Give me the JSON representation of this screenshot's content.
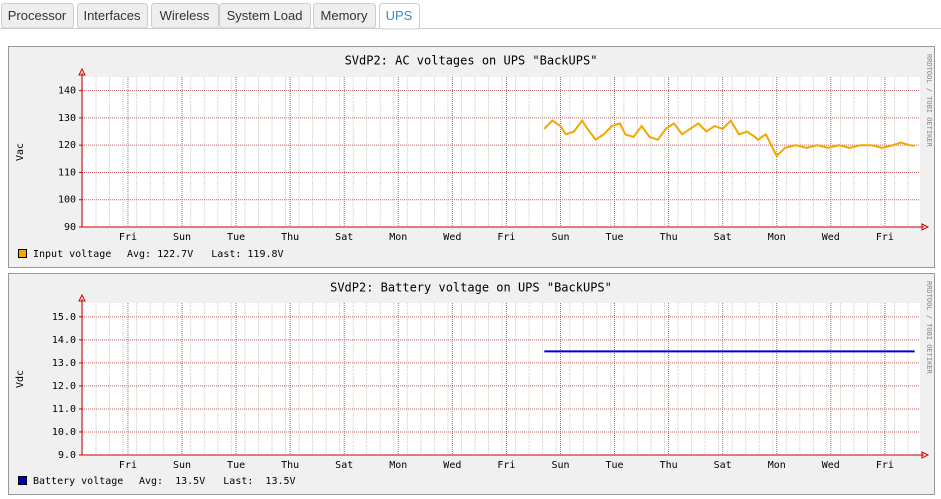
{
  "tabs": [
    "Processor",
    "Interfaces",
    "Wireless",
    "System Load",
    "Memory",
    "UPS"
  ],
  "active_tab": 5,
  "chart_data": [
    {
      "type": "line",
      "title": "SVdP2: AC voltages on UPS \"BackUPS\"",
      "y_label": "Vac",
      "side_text": "RRDTOOL / TOBI OETIKER",
      "xlim": [
        0,
        31
      ],
      "ylim": [
        90,
        145
      ],
      "xticks": [
        {
          "value": 1.7,
          "label": "Fri"
        },
        {
          "value": 3.7,
          "label": "Sun"
        },
        {
          "value": 5.7,
          "label": "Tue"
        },
        {
          "value": 7.7,
          "label": "Thu"
        },
        {
          "value": 9.7,
          "label": "Sat"
        },
        {
          "value": 11.7,
          "label": "Mon"
        },
        {
          "value": 13.7,
          "label": "Wed"
        },
        {
          "value": 15.7,
          "label": "Fri"
        },
        {
          "value": 17.7,
          "label": "Sun"
        },
        {
          "value": 19.7,
          "label": "Tue"
        },
        {
          "value": 21.7,
          "label": "Thu"
        },
        {
          "value": 23.7,
          "label": "Sat"
        },
        {
          "value": 25.7,
          "label": "Mon"
        },
        {
          "value": 27.7,
          "label": "Wed"
        },
        {
          "value": 29.7,
          "label": "Fri"
        }
      ],
      "yticks": [
        90,
        100,
        110,
        120,
        130,
        140
      ],
      "grid": true,
      "legend_stats": "Avg: 122.7V   Last: 119.8V",
      "series": [
        {
          "name": "Input voltage",
          "color": "#f0a800",
          "x": [
            17.1,
            17.4,
            17.7,
            17.9,
            18.2,
            18.5,
            18.7,
            19.0,
            19.3,
            19.6,
            19.9,
            20.1,
            20.4,
            20.7,
            21.0,
            21.3,
            21.6,
            21.9,
            22.2,
            22.5,
            22.8,
            23.1,
            23.4,
            23.7,
            24.0,
            24.3,
            24.6,
            24.9,
            25.0,
            25.3,
            25.5,
            25.7,
            26.0,
            26.4,
            26.8,
            27.2,
            27.6,
            28.0,
            28.4,
            28.8,
            29.2,
            29.6,
            30.0,
            30.3,
            30.6,
            30.8
          ],
          "values": [
            126,
            129,
            127,
            124,
            125,
            129,
            126,
            122,
            124,
            127,
            128,
            124,
            123,
            127,
            123,
            122,
            126,
            128,
            124,
            126,
            128,
            125,
            127,
            126,
            129,
            124,
            125,
            123,
            122,
            124,
            120,
            116,
            119,
            120,
            119,
            120,
            119,
            120,
            119,
            120,
            120,
            119,
            120,
            121,
            120,
            119.8
          ]
        }
      ]
    },
    {
      "type": "line",
      "title": "SVdP2: Battery voltage on UPS \"BackUPS\"",
      "y_label": "Vdc",
      "side_text": "RRDTOOL / TOBI OETIKER",
      "xlim": [
        0,
        31
      ],
      "ylim": [
        9,
        15.6
      ],
      "xticks": [
        {
          "value": 1.7,
          "label": "Fri"
        },
        {
          "value": 3.7,
          "label": "Sun"
        },
        {
          "value": 5.7,
          "label": "Tue"
        },
        {
          "value": 7.7,
          "label": "Thu"
        },
        {
          "value": 9.7,
          "label": "Sat"
        },
        {
          "value": 11.7,
          "label": "Mon"
        },
        {
          "value": 13.7,
          "label": "Wed"
        },
        {
          "value": 15.7,
          "label": "Fri"
        },
        {
          "value": 17.7,
          "label": "Sun"
        },
        {
          "value": 19.7,
          "label": "Tue"
        },
        {
          "value": 21.7,
          "label": "Thu"
        },
        {
          "value": 23.7,
          "label": "Sat"
        },
        {
          "value": 25.7,
          "label": "Mon"
        },
        {
          "value": 27.7,
          "label": "Wed"
        },
        {
          "value": 29.7,
          "label": "Fri"
        }
      ],
      "yticks": [
        {
          "value": 9,
          "label": "9.0"
        },
        {
          "value": 10,
          "label": "10.0"
        },
        {
          "value": 11,
          "label": "11.0"
        },
        {
          "value": 12,
          "label": "12.0"
        },
        {
          "value": 13,
          "label": "13.0"
        },
        {
          "value": 14,
          "label": "14.0"
        },
        {
          "value": 15,
          "label": "15.0"
        }
      ],
      "grid": true,
      "legend_stats": "Avg:  13.5V   Last:  13.5V",
      "series": [
        {
          "name": "Battery voltage",
          "color": "#0000cc",
          "x": [
            17.1,
            30.8
          ],
          "values": [
            13.5,
            13.5
          ]
        }
      ]
    }
  ]
}
